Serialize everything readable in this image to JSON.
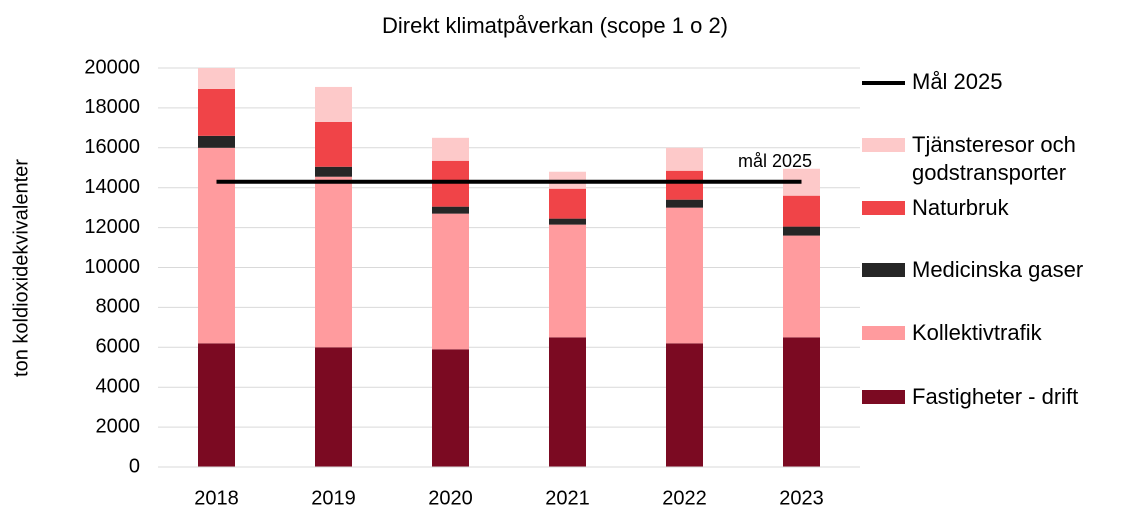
{
  "chart_data": {
    "type": "bar",
    "stacked": true,
    "title": "Direkt klimatpåverkan (scope 1 o 2)",
    "y_label": "ton koldioxidekvivalenter",
    "categories": [
      "2018",
      "2019",
      "2020",
      "2021",
      "2022",
      "2023"
    ],
    "series": [
      {
        "name": "Fastigheter - drift",
        "color": "#7b0a22",
        "values": [
          6200,
          6000,
          5900,
          6500,
          6200,
          6500
        ]
      },
      {
        "name": "Kollektivtrafik",
        "color": "#ff9b9e",
        "values": [
          9800,
          8550,
          6800,
          5650,
          6800,
          5100
        ]
      },
      {
        "name": "Medicinska gaser",
        "color": "#262626",
        "values": [
          600,
          500,
          350,
          300,
          400,
          450
        ]
      },
      {
        "name": "Naturbruk",
        "color": "#f04448",
        "values": [
          2350,
          2250,
          2300,
          1500,
          1450,
          1550
        ]
      },
      {
        "name": "Tjänsteresor och godstransporter",
        "color": "#fdc9c9",
        "values": [
          1050,
          1750,
          1150,
          850,
          1150,
          1350
        ]
      },
      {
        "name": "Mål 2025",
        "color": "#000000",
        "type": "line",
        "values": [
          14300,
          14300,
          14300,
          14300,
          14300,
          14300
        ]
      }
    ],
    "annotation": "mål 2025",
    "ylim": [
      0,
      20000
    ],
    "yticks": [
      0,
      2000,
      4000,
      6000,
      8000,
      10000,
      12000,
      14000,
      16000,
      18000,
      20000
    ],
    "grid": true,
    "legend": "right"
  }
}
